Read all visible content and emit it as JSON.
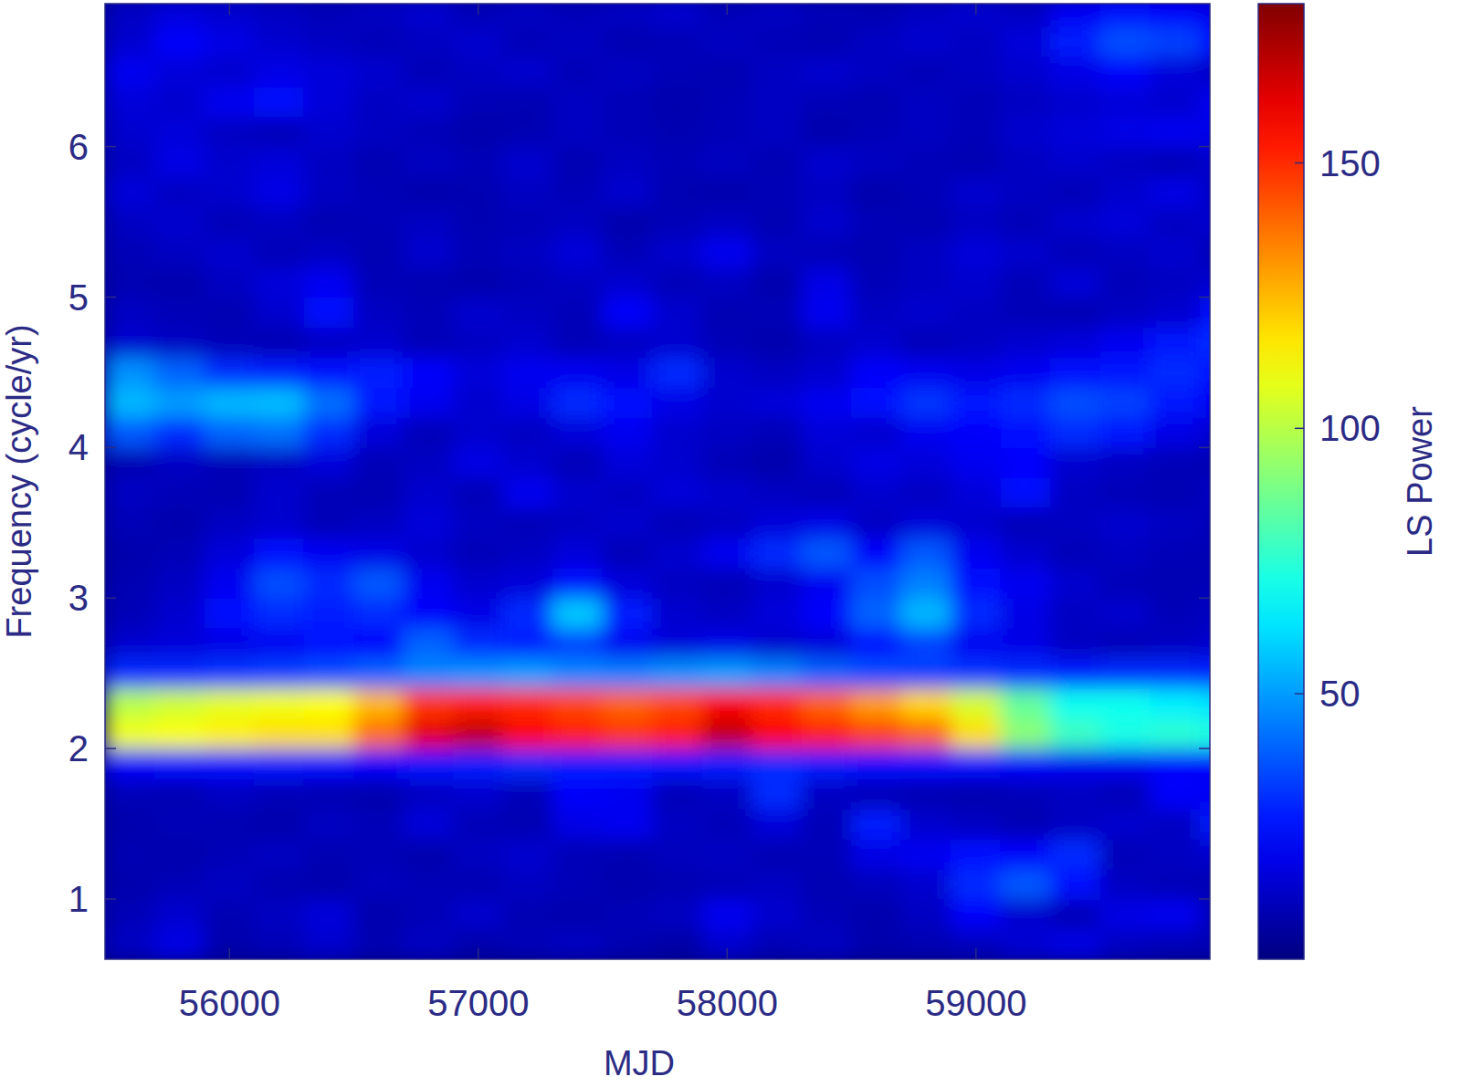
{
  "chart_data": {
    "type": "heatmap",
    "x_label": "MJD",
    "y_label": "Frequency (cycle/yr)",
    "xlim": [
      55500,
      59940
    ],
    "ylim": [
      0.6,
      6.95
    ],
    "xticks": [
      56000,
      57000,
      58000,
      59000
    ],
    "yticks": [
      1,
      2,
      3,
      4,
      5,
      6
    ],
    "x": [
      55600,
      55800,
      56000,
      56200,
      56400,
      56600,
      56800,
      57000,
      57200,
      57400,
      57600,
      57800,
      58000,
      58200,
      58400,
      58600,
      58800,
      59000,
      59200,
      59400,
      59600,
      59800,
      60000
    ],
    "y": [
      0.7,
      0.9,
      1.1,
      1.3,
      1.5,
      1.7,
      1.9,
      2.1,
      2.3,
      2.5,
      2.7,
      2.9,
      3.1,
      3.3,
      3.5,
      3.7,
      3.9,
      4.1,
      4.3,
      4.5,
      4.7,
      4.9,
      5.1,
      5.3,
      5.5,
      5.7,
      5.9,
      6.1,
      6.3,
      6.5,
      6.7,
      6.9
    ],
    "z": [
      [
        12,
        18,
        8,
        10,
        14,
        9,
        12,
        8,
        10,
        12,
        9,
        7,
        14,
        10,
        12,
        8,
        9,
        11,
        15,
        18,
        12,
        10,
        9
      ],
      [
        10,
        14,
        9,
        12,
        16,
        8,
        10,
        14,
        9,
        8,
        10,
        12,
        20,
        14,
        10,
        8,
        12,
        22,
        14,
        10,
        18,
        20,
        10
      ],
      [
        8,
        10,
        12,
        9,
        8,
        11,
        10,
        9,
        12,
        10,
        8,
        9,
        10,
        12,
        9,
        11,
        14,
        30,
        38,
        25,
        12,
        10,
        9
      ],
      [
        9,
        8,
        10,
        12,
        9,
        10,
        8,
        12,
        14,
        10,
        9,
        11,
        12,
        9,
        10,
        18,
        20,
        24,
        22,
        30,
        10,
        12,
        14
      ],
      [
        8,
        10,
        9,
        8,
        12,
        10,
        16,
        10,
        9,
        18,
        20,
        12,
        10,
        16,
        10,
        28,
        14,
        12,
        9,
        12,
        14,
        12,
        28
      ],
      [
        10,
        9,
        12,
        10,
        9,
        8,
        12,
        14,
        10,
        22,
        20,
        10,
        12,
        30,
        12,
        10,
        9,
        8,
        10,
        12,
        10,
        22,
        20
      ],
      [
        22,
        24,
        25,
        26,
        24,
        22,
        26,
        28,
        30,
        28,
        27,
        26,
        28,
        30,
        28,
        25,
        24,
        24,
        22,
        20,
        20,
        22,
        22
      ],
      [
        110,
        112,
        115,
        118,
        118,
        138,
        162,
        168,
        158,
        152,
        148,
        152,
        168,
        158,
        152,
        146,
        140,
        118,
        92,
        78,
        72,
        75,
        72
      ],
      [
        100,
        104,
        108,
        110,
        112,
        125,
        148,
        152,
        150,
        145,
        140,
        145,
        158,
        150,
        140,
        130,
        120,
        105,
        85,
        70,
        70,
        65,
        62
      ],
      [
        30,
        30,
        32,
        34,
        36,
        40,
        46,
        48,
        50,
        46,
        45,
        48,
        50,
        46,
        40,
        36,
        34,
        32,
        30,
        28,
        30,
        30,
        28
      ],
      [
        14,
        16,
        18,
        20,
        24,
        22,
        40,
        30,
        28,
        34,
        20,
        16,
        18,
        14,
        16,
        24,
        34,
        20,
        18,
        12,
        10,
        12,
        14
      ],
      [
        10,
        14,
        24,
        30,
        28,
        30,
        22,
        18,
        30,
        58,
        28,
        14,
        12,
        16,
        22,
        40,
        55,
        30,
        18,
        12,
        14,
        10,
        12
      ],
      [
        9,
        12,
        20,
        36,
        30,
        38,
        20,
        14,
        16,
        24,
        16,
        12,
        10,
        14,
        20,
        36,
        45,
        24,
        20,
        14,
        10,
        9,
        10
      ],
      [
        8,
        10,
        16,
        24,
        20,
        18,
        14,
        10,
        12,
        16,
        10,
        14,
        20,
        30,
        38,
        22,
        38,
        20,
        14,
        10,
        12,
        10,
        9
      ],
      [
        10,
        8,
        12,
        14,
        10,
        12,
        16,
        12,
        10,
        12,
        14,
        10,
        12,
        16,
        18,
        12,
        16,
        14,
        10,
        12,
        14,
        12,
        10
      ],
      [
        12,
        10,
        9,
        14,
        10,
        9,
        14,
        10,
        20,
        14,
        12,
        16,
        14,
        12,
        10,
        14,
        12,
        16,
        24,
        12,
        10,
        9,
        12
      ],
      [
        9,
        12,
        10,
        12,
        16,
        10,
        12,
        18,
        14,
        10,
        16,
        14,
        10,
        8,
        14,
        18,
        16,
        20,
        22,
        14,
        12,
        10,
        9
      ],
      [
        38,
        30,
        40,
        42,
        30,
        16,
        10,
        14,
        12,
        16,
        20,
        14,
        12,
        10,
        16,
        14,
        20,
        22,
        24,
        30,
        26,
        18,
        14
      ],
      [
        55,
        50,
        55,
        56,
        42,
        26,
        20,
        14,
        18,
        30,
        24,
        18,
        14,
        16,
        20,
        24,
        32,
        26,
        30,
        36,
        34,
        26,
        20
      ],
      [
        48,
        40,
        30,
        28,
        24,
        28,
        22,
        16,
        20,
        20,
        18,
        30,
        14,
        12,
        14,
        22,
        20,
        18,
        20,
        24,
        26,
        30,
        24
      ],
      [
        14,
        12,
        10,
        9,
        12,
        14,
        10,
        12,
        14,
        10,
        12,
        14,
        10,
        8,
        12,
        14,
        10,
        12,
        14,
        16,
        20,
        26,
        30
      ],
      [
        12,
        10,
        9,
        14,
        24,
        12,
        10,
        14,
        12,
        10,
        22,
        14,
        9,
        10,
        20,
        12,
        14,
        12,
        10,
        9,
        12,
        14,
        24
      ],
      [
        9,
        8,
        12,
        16,
        20,
        10,
        9,
        8,
        10,
        12,
        14,
        10,
        12,
        8,
        18,
        10,
        12,
        14,
        10,
        16,
        10,
        12,
        14
      ],
      [
        10,
        12,
        14,
        10,
        12,
        9,
        14,
        10,
        12,
        16,
        10,
        14,
        20,
        12,
        10,
        9,
        12,
        16,
        14,
        10,
        12,
        14,
        10
      ],
      [
        12,
        14,
        10,
        12,
        9,
        10,
        12,
        9,
        10,
        12,
        8,
        10,
        12,
        9,
        14,
        10,
        9,
        12,
        10,
        14,
        16,
        12,
        14
      ],
      [
        16,
        12,
        14,
        18,
        12,
        10,
        8,
        9,
        12,
        10,
        14,
        9,
        8,
        10,
        12,
        8,
        10,
        14,
        12,
        10,
        14,
        18,
        12
      ],
      [
        12,
        18,
        14,
        16,
        12,
        9,
        12,
        10,
        14,
        9,
        12,
        10,
        12,
        9,
        14,
        12,
        10,
        9,
        12,
        14,
        12,
        10,
        14
      ],
      [
        14,
        16,
        12,
        10,
        14,
        12,
        10,
        8,
        9,
        12,
        10,
        9,
        10,
        12,
        8,
        10,
        12,
        10,
        14,
        16,
        18,
        20,
        18
      ],
      [
        16,
        14,
        20,
        24,
        16,
        12,
        14,
        10,
        9,
        12,
        10,
        8,
        10,
        12,
        10,
        9,
        12,
        10,
        12,
        14,
        16,
        14,
        20
      ],
      [
        20,
        16,
        14,
        18,
        16,
        14,
        10,
        12,
        14,
        10,
        12,
        10,
        9,
        12,
        14,
        12,
        10,
        12,
        14,
        18,
        22,
        16,
        12
      ],
      [
        14,
        22,
        18,
        14,
        12,
        10,
        12,
        14,
        10,
        12,
        9,
        10,
        12,
        10,
        9,
        12,
        14,
        12,
        16,
        28,
        36,
        34,
        24
      ],
      [
        12,
        16,
        14,
        12,
        10,
        12,
        14,
        10,
        12,
        10,
        12,
        14,
        10,
        12,
        10,
        9,
        12,
        14,
        12,
        20,
        24,
        22,
        18
      ]
    ],
    "colorbar_range": [
      0,
      180
    ],
    "colorbar_ticks": [
      50,
      100,
      150
    ],
    "colorbar_label": "LS Power"
  }
}
